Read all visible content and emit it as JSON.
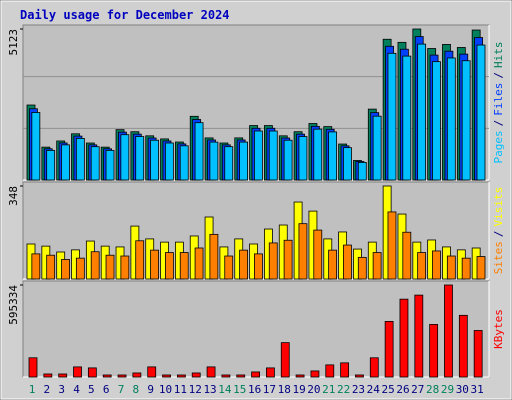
{
  "title": "Daily usage for December 2024",
  "days": {
    "categories": [
      "1",
      "2",
      "3",
      "4",
      "5",
      "6",
      "7",
      "8",
      "9",
      "10",
      "11",
      "12",
      "13",
      "14",
      "15",
      "16",
      "17",
      "18",
      "19",
      "20",
      "21",
      "22",
      "23",
      "24",
      "25",
      "26",
      "27",
      "28",
      "29",
      "30",
      "31"
    ],
    "weekend": [
      true,
      false,
      false,
      false,
      false,
      false,
      true,
      true,
      false,
      false,
      false,
      false,
      false,
      true,
      true,
      false,
      false,
      false,
      false,
      false,
      true,
      true,
      false,
      false,
      false,
      false,
      false,
      true,
      true,
      false,
      false
    ],
    "weekday_color": "#000080",
    "weekend_color": "#00805c"
  },
  "chart_data": [
    {
      "type": "bar",
      "legend_separator": "/",
      "ylim": [
        0,
        5123
      ],
      "yticks": [
        5123
      ],
      "series": [
        {
          "name": "Hits",
          "color": "#00805c",
          "values": [
            2544,
            1115,
            1324,
            1568,
            1255,
            1115,
            1708,
            1638,
            1499,
            1394,
            1289,
            2161,
            1429,
            1255,
            1429,
            1847,
            1847,
            1499,
            1638,
            1917,
            1812,
            1220,
            662,
            2405,
            4775,
            4670,
            5123,
            4461,
            4600,
            4496,
            5088
          ]
        },
        {
          "name": "Files",
          "color": "#0040ff",
          "values": [
            2417,
            1059,
            1258,
            1490,
            1192,
            1059,
            1623,
            1556,
            1424,
            1324,
            1225,
            2053,
            1358,
            1192,
            1358,
            1755,
            1755,
            1424,
            1556,
            1821,
            1721,
            1159,
            629,
            2285,
            4536,
            4437,
            4867,
            4238,
            4370,
            4271,
            4834
          ]
        },
        {
          "name": "Pages",
          "color": "#00c0ff",
          "values": [
            2290,
            1004,
            1192,
            1411,
            1130,
            1004,
            1537,
            1474,
            1349,
            1255,
            1160,
            1945,
            1286,
            1130,
            1286,
            1662,
            1662,
            1349,
            1474,
            1725,
            1631,
            1098,
            596,
            2165,
            4298,
            4203,
            4611,
            4015,
            4140,
            4046,
            4579
          ]
        }
      ]
    },
    {
      "type": "bar",
      "legend_separator": "/",
      "ylim": [
        0,
        348
      ],
      "yticks": [
        348
      ],
      "series": [
        {
          "name": "Visits",
          "color": "#ffff00",
          "values": [
            131,
            123,
            101,
            109,
            142,
            123,
            120,
            198,
            150,
            138,
            138,
            161,
            232,
            120,
            150,
            131,
            187,
            202,
            288,
            254,
            150,
            176,
            112,
            138,
            348,
            243,
            138,
            146,
            120,
            109,
            116
          ]
        },
        {
          "name": "Sites",
          "color": "#ff8000",
          "values": [
            94,
            89,
            73,
            78,
            102,
            89,
            86,
            143,
            108,
            99,
            99,
            116,
            167,
            86,
            108,
            94,
            135,
            145,
            207,
            183,
            108,
            127,
            81,
            99,
            251,
            175,
            99,
            105,
            86,
            78,
            84
          ]
        }
      ]
    },
    {
      "type": "bar",
      "ylim": [
        0,
        595334
      ],
      "yticks": [
        595334
      ],
      "series": [
        {
          "name": "KBytes",
          "color": "#ff0000",
          "values": [
            124300,
            19600,
            19600,
            65400,
            58900,
            13100,
            13100,
            26200,
            65400,
            13100,
            13100,
            26200,
            65400,
            13100,
            13100,
            32700,
            58900,
            222400,
            13100,
            39300,
            78500,
            91600,
            13100,
            124300,
            359800,
            503700,
            529900,
            340200,
            595334,
            399100,
            300900
          ]
        }
      ]
    }
  ]
}
